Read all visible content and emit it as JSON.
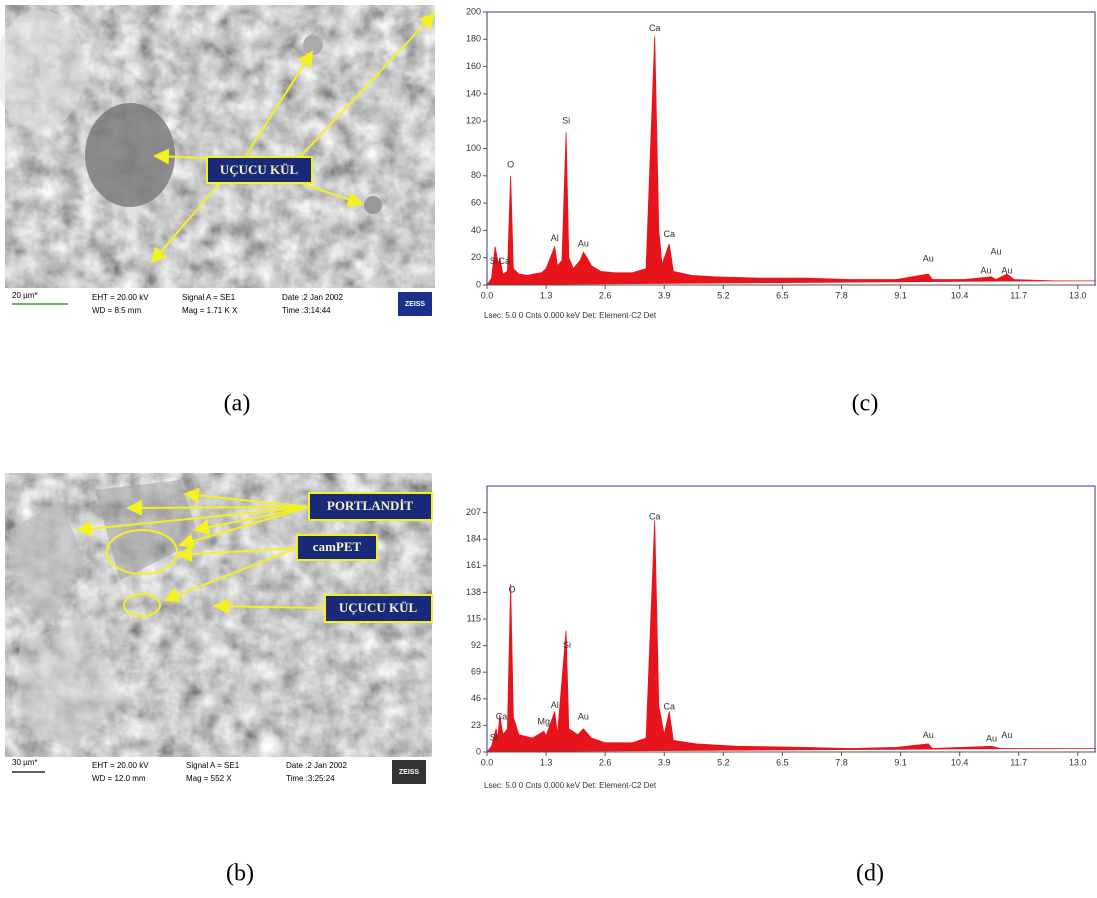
{
  "sem_panels": [
    {
      "labels": [
        "UÇUCU KÜL"
      ],
      "scale": "20 µm*",
      "info": [
        "EHT = 20.00 kV",
        "WD = 8.5 mm",
        "Signal A = SE1",
        "Mag =  1.71 K X",
        "Date :2 Jan 2002",
        "Time :3:14:44"
      ],
      "logo": "ZEISS",
      "caption": "(a)"
    },
    {
      "labels": [
        "PORTLANDİT",
        "camPET",
        "UÇUCU KÜL"
      ],
      "scale": "30 µm*",
      "info": [
        "EHT = 20.00 kV",
        "WD = 12.0 mm",
        "Signal A = SE1",
        "Mag =    552 X",
        "Date :2 Jan 2002",
        "Time :3:25:24"
      ],
      "logo": "ZEISS",
      "caption": "(b)"
    }
  ],
  "chart_data": [
    {
      "type": "area",
      "caption": "(c)",
      "note": "Lsec: 5.0 0 Cnts  0.000 keV Det: Element-C2 Det",
      "color": "#e8141c",
      "xlim": [
        0,
        13.4
      ],
      "ylim": [
        0,
        200
      ],
      "xticks": [
        {
          "value": 0,
          "label": "0.0"
        },
        1.3,
        2.6,
        3.9,
        5.2,
        6.5,
        7.8,
        9.1,
        10.4,
        11.7,
        {
          "value": 13,
          "label": "13.0"
        }
      ],
      "yticks": [
        0,
        20,
        40,
        60,
        80,
        100,
        120,
        140,
        160,
        180,
        200
      ],
      "x": [
        0,
        0.1,
        0.18,
        0.25,
        0.28,
        0.35,
        0.45,
        0.52,
        0.58,
        0.7,
        0.9,
        1.0,
        1.2,
        1.3,
        1.49,
        1.55,
        1.65,
        1.74,
        1.8,
        1.9,
        2.05,
        2.12,
        2.2,
        2.3,
        2.5,
        2.8,
        3.2,
        3.5,
        3.69,
        3.78,
        3.85,
        4.01,
        4.1,
        4.5,
        5.0,
        6.0,
        7.0,
        8.0,
        9.0,
        9.71,
        9.8,
        10.5,
        11.1,
        11.2,
        11.44,
        11.6,
        12.5,
        13.4
      ],
      "values": [
        0,
        5,
        28,
        15,
        20,
        8,
        10,
        80,
        12,
        8,
        7,
        8,
        9,
        12,
        28,
        14,
        18,
        112,
        20,
        12,
        18,
        24,
        20,
        14,
        10,
        9,
        9,
        12,
        182,
        40,
        15,
        30,
        10,
        7,
        6,
        5,
        5,
        4,
        4,
        8,
        4,
        4,
        6,
        4,
        8,
        4,
        3,
        3
      ],
      "annotations": [
        {
          "text": "Si",
          "x": 0.15,
          "y": 17
        },
        {
          "text": "Ca",
          "x": 0.38,
          "y": 17
        },
        {
          "text": "O",
          "x": 0.52,
          "y": 88
        },
        {
          "text": "Al",
          "x": 1.49,
          "y": 34
        },
        {
          "text": "Si",
          "x": 1.74,
          "y": 120
        },
        {
          "text": "Au",
          "x": 2.12,
          "y": 30
        },
        {
          "text": "Ca",
          "x": 3.69,
          "y": 188
        },
        {
          "text": "Ca",
          "x": 4.01,
          "y": 37
        },
        {
          "text": "Au",
          "x": 9.71,
          "y": 19
        },
        {
          "text": "Au",
          "x": 10.98,
          "y": 10
        },
        {
          "text": "Au",
          "x": 11.44,
          "y": 10
        },
        {
          "text": "Au",
          "x": 11.2,
          "y": 24
        }
      ]
    },
    {
      "type": "area",
      "caption": "(d)",
      "note": "Lsec: 5.0 0 Cnts  0.000 keV Det: Element-C2 Det",
      "color": "#e8141c",
      "xlim": [
        0,
        13.4
      ],
      "ylim": [
        0,
        230
      ],
      "xticks": [
        {
          "value": 0,
          "label": "0.0"
        },
        1.3,
        2.6,
        3.9,
        5.2,
        6.5,
        7.8,
        9.1,
        10.4,
        11.7,
        {
          "value": 13,
          "label": "13.0"
        }
      ],
      "yticks": [
        0,
        23,
        46,
        69,
        92,
        115,
        138,
        161,
        184,
        207
      ],
      "x": [
        0,
        0.1,
        0.2,
        0.24,
        0.28,
        0.35,
        0.45,
        0.52,
        0.58,
        0.7,
        1.0,
        1.25,
        1.3,
        1.49,
        1.55,
        1.74,
        1.8,
        2.0,
        2.12,
        2.3,
        2.6,
        3.2,
        3.5,
        3.69,
        3.78,
        3.9,
        4.01,
        4.1,
        4.6,
        5.5,
        7.0,
        8.0,
        9.0,
        9.71,
        9.8,
        11.1,
        11.3,
        12.5,
        13.4
      ],
      "values": [
        0,
        5,
        20,
        12,
        32,
        15,
        20,
        145,
        30,
        15,
        12,
        18,
        14,
        35,
        15,
        105,
        20,
        15,
        20,
        12,
        8,
        8,
        12,
        200,
        40,
        15,
        35,
        10,
        7,
        5,
        4,
        3,
        4,
        7,
        3,
        5,
        3,
        3,
        3
      ],
      "annotations": [
        {
          "text": "Si",
          "x": 0.15,
          "y": 12
        },
        {
          "text": "Ca",
          "x": 0.32,
          "y": 30
        },
        {
          "text": "O",
          "x": 0.55,
          "y": 140
        },
        {
          "text": "Mg",
          "x": 1.25,
          "y": 26
        },
        {
          "text": "Al",
          "x": 1.49,
          "y": 40
        },
        {
          "text": "Si",
          "x": 1.76,
          "y": 92
        },
        {
          "text": "Au",
          "x": 2.12,
          "y": 30
        },
        {
          "text": "Ca",
          "x": 3.69,
          "y": 203
        },
        {
          "text": "Ca",
          "x": 4.01,
          "y": 39
        },
        {
          "text": "Au",
          "x": 9.71,
          "y": 14
        },
        {
          "text": "Au",
          "x": 11.1,
          "y": 11
        },
        {
          "text": "Au",
          "x": 11.44,
          "y": 14
        }
      ]
    }
  ]
}
